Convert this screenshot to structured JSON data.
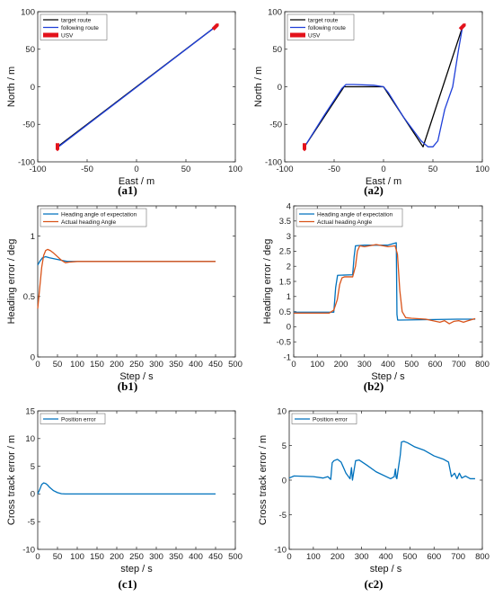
{
  "captions": [
    "(a1)",
    "(a2)",
    "(b1)",
    "(b2)",
    "(c1)",
    "(c2)"
  ],
  "chart_data": [
    {
      "id": "a1",
      "type": "line",
      "xlabel": "East / m",
      "ylabel": "North / m",
      "xlim": [
        -100,
        100
      ],
      "ylim": [
        -100,
        100
      ],
      "xticks": [
        -100,
        -50,
        0,
        50,
        100
      ],
      "yticks": [
        -100,
        -50,
        0,
        50,
        100
      ],
      "series": [
        {
          "name": "target route",
          "color": "#000000",
          "x": [
            -80,
            80
          ],
          "y": [
            -80,
            80
          ]
        },
        {
          "name": "following route",
          "color": "#1f3fd9",
          "x": [
            -80,
            -79,
            80
          ],
          "y": [
            -82,
            -80,
            80
          ]
        },
        {
          "name": "USV",
          "color": "#e3121b",
          "marker": "boat",
          "x": [
            -80,
            80
          ],
          "y": [
            -80,
            80
          ]
        }
      ]
    },
    {
      "id": "a2",
      "type": "line",
      "xlabel": "East / m",
      "ylabel": "North / m",
      "xlim": [
        -100,
        100
      ],
      "ylim": [
        -100,
        100
      ],
      "xticks": [
        -100,
        -50,
        0,
        50,
        100
      ],
      "yticks": [
        -100,
        -50,
        0,
        50,
        100
      ],
      "series": [
        {
          "name": "target route",
          "color": "#000000",
          "x": [
            -80,
            -40,
            0,
            40,
            80
          ],
          "y": [
            -80,
            0,
            0,
            -80,
            80
          ]
        },
        {
          "name": "following route",
          "color": "#1f3fd9",
          "x": [
            -80,
            -60,
            -42,
            -38,
            -30,
            -10,
            0,
            5,
            20,
            38,
            45,
            50,
            55,
            62,
            70,
            76,
            80
          ],
          "y": [
            -80,
            -38,
            -2,
            3,
            3,
            2,
            0,
            -8,
            -40,
            -72,
            -80,
            -80,
            -72,
            -30,
            0,
            50,
            80
          ]
        },
        {
          "name": "USV",
          "color": "#e3121b",
          "marker": "boat",
          "x": [
            -80,
            80
          ],
          "y": [
            -80,
            80
          ]
        }
      ]
    },
    {
      "id": "b1",
      "type": "line",
      "xlabel": "Step / s",
      "ylabel": "Heading error / deg",
      "xlim": [
        0,
        500
      ],
      "ylim": [
        0,
        1.25
      ],
      "xticks": [
        0,
        50,
        100,
        150,
        200,
        250,
        300,
        350,
        400,
        450,
        500
      ],
      "yticks": [
        0,
        0.5,
        1
      ],
      "series": [
        {
          "name": "Heading angle of expectation",
          "color": "#0072bd",
          "x": [
            0,
            5,
            12,
            20,
            30,
            45,
            60,
            75,
            100,
            200,
            300,
            400,
            450
          ],
          "y": [
            0.76,
            0.79,
            0.82,
            0.83,
            0.82,
            0.81,
            0.8,
            0.79,
            0.79,
            0.79,
            0.79,
            0.79,
            0.79
          ]
        },
        {
          "name": "Actual heading Angle",
          "color": "#d95319",
          "x": [
            0,
            5,
            10,
            15,
            20,
            25,
            32,
            40,
            50,
            60,
            70,
            80,
            100,
            200,
            300,
            400,
            450
          ],
          "y": [
            0.4,
            0.57,
            0.74,
            0.84,
            0.88,
            0.89,
            0.88,
            0.86,
            0.83,
            0.8,
            0.78,
            0.785,
            0.79,
            0.79,
            0.79,
            0.79,
            0.79
          ]
        }
      ]
    },
    {
      "id": "b2",
      "type": "line",
      "xlabel": "Step / s",
      "ylabel": "Heading error / deg",
      "xlim": [
        0,
        800
      ],
      "ylim": [
        -1,
        4
      ],
      "xticks": [
        0,
        100,
        200,
        300,
        400,
        500,
        600,
        700,
        800
      ],
      "yticks": [
        -1,
        -0.5,
        0,
        0.5,
        1,
        1.5,
        2,
        2.5,
        3,
        3.5,
        4
      ],
      "series": [
        {
          "name": "Heading angle of expectation",
          "color": "#0072bd",
          "x": [
            0,
            170,
            178,
            186,
            250,
            256,
            262,
            300,
            400,
            435,
            438,
            441,
            450,
            600,
            700,
            770
          ],
          "y": [
            0.48,
            0.48,
            1.3,
            1.7,
            1.72,
            2.3,
            2.68,
            2.7,
            2.7,
            2.78,
            0.4,
            0.22,
            0.22,
            0.24,
            0.25,
            0.25
          ]
        },
        {
          "name": "Actual heading Angle",
          "color": "#d95319",
          "x": [
            0,
            150,
            170,
            185,
            195,
            205,
            215,
            250,
            262,
            270,
            280,
            300,
            350,
            400,
            430,
            440,
            450,
            460,
            475,
            500,
            560,
            620,
            640,
            660,
            680,
            700,
            720,
            740,
            770
          ],
          "y": [
            0.45,
            0.45,
            0.55,
            0.9,
            1.4,
            1.62,
            1.65,
            1.65,
            2.0,
            2.5,
            2.68,
            2.65,
            2.72,
            2.65,
            2.68,
            2.4,
            1.2,
            0.5,
            0.3,
            0.28,
            0.25,
            0.15,
            0.2,
            0.1,
            0.18,
            0.2,
            0.15,
            0.2,
            0.27
          ]
        }
      ]
    },
    {
      "id": "c1",
      "type": "line",
      "xlabel": "step / s",
      "ylabel": "Cross track error / m",
      "xlim": [
        0,
        500
      ],
      "ylim": [
        -10,
        15
      ],
      "xticks": [
        0,
        50,
        100,
        150,
        200,
        250,
        300,
        350,
        400,
        450,
        500
      ],
      "yticks": [
        -10,
        -5,
        0,
        5,
        10,
        15
      ],
      "series": [
        {
          "name": "Position error",
          "color": "#0072bd",
          "x": [
            0,
            5,
            10,
            15,
            20,
            25,
            30,
            40,
            50,
            60,
            70,
            80,
            100,
            200,
            300,
            400,
            450
          ],
          "y": [
            0,
            0.8,
            1.7,
            2.0,
            1.9,
            1.6,
            1.2,
            0.6,
            0.25,
            0.05,
            0,
            0,
            0,
            0,
            0,
            0,
            0
          ]
        }
      ]
    },
    {
      "id": "c2",
      "type": "line",
      "xlabel": "step / s",
      "ylabel": "Cross track error / m",
      "xlim": [
        0,
        800
      ],
      "ylim": [
        -10,
        10
      ],
      "xticks": [
        0,
        100,
        200,
        300,
        400,
        500,
        600,
        700,
        800
      ],
      "yticks": [
        -10,
        -5,
        0,
        5,
        10
      ],
      "series": [
        {
          "name": "Position error",
          "color": "#0072bd",
          "x": [
            0,
            20,
            100,
            140,
            160,
            172,
            178,
            185,
            200,
            215,
            235,
            252,
            258,
            262,
            275,
            290,
            320,
            360,
            420,
            435,
            440,
            443,
            446,
            450,
            460,
            465,
            475,
            490,
            520,
            560,
            600,
            640,
            660,
            672,
            685,
            695,
            705,
            715,
            730,
            750,
            770
          ],
          "y": [
            0.3,
            0.6,
            0.5,
            0.3,
            0.5,
            0.1,
            2.5,
            2.8,
            3.0,
            2.6,
            1.0,
            0.2,
            1.8,
            0,
            2.8,
            2.9,
            2.2,
            1.2,
            0.2,
            0.5,
            1.6,
            0.4,
            0.2,
            1.2,
            3.6,
            5.5,
            5.6,
            5.4,
            4.8,
            4.3,
            3.5,
            3.0,
            2.6,
            0.5,
            1.0,
            0.2,
            1.0,
            0.3,
            0.6,
            0.2,
            0.2
          ]
        }
      ]
    }
  ]
}
